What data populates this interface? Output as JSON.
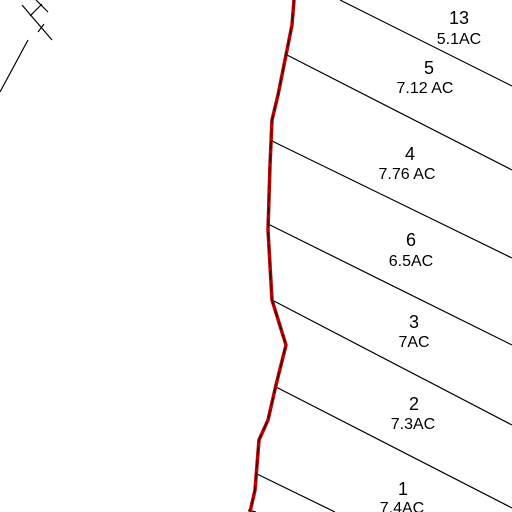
{
  "lots": [
    {
      "number": "13",
      "area": "5.1AC"
    },
    {
      "number": "5",
      "area": "7.12 AC"
    },
    {
      "number": "4",
      "area": "7.76 AC"
    },
    {
      "number": "6",
      "area": "6.5AC"
    },
    {
      "number": "3",
      "area": "7AC"
    },
    {
      "number": "2",
      "area": "7.3AC"
    },
    {
      "number": "1",
      "area": "7.4AC"
    }
  ]
}
